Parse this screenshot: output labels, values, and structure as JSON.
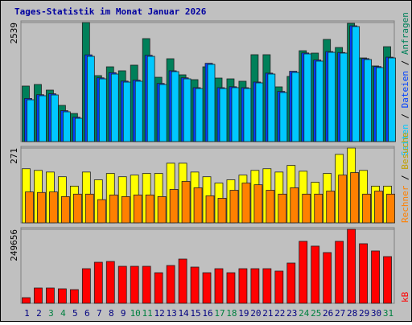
{
  "title": "Tages-Statistik im Monat Januar 2026",
  "legend_separator": "/",
  "chart_data": [
    {
      "type": "bar",
      "ylim": [
        0,
        2539
      ],
      "yticks": [
        2539
      ],
      "series": [
        {
          "name": "Anfragen",
          "color": "#00805a",
          "values": [
            1184,
            1218,
            1098,
            772,
            600,
            2539,
            1407,
            1595,
            1510,
            1630,
            2196,
            1372,
            1767,
            1424,
            1321,
            1595,
            1355,
            1338,
            1287,
            1853,
            1853,
            1167,
            1390,
            1938,
            1887,
            2179,
            2007,
            2522,
            1784,
            1613,
            2024
          ]
        },
        {
          "name": "Dateien",
          "color": "#0040ff",
          "values": [
            920,
            1000,
            1020,
            660,
            520,
            1850,
            1360,
            1470,
            1290,
            1310,
            1840,
            1240,
            1510,
            1360,
            1150,
            1670,
            1150,
            1170,
            1150,
            1270,
            1460,
            1070,
            1500,
            1890,
            1740,
            1920,
            1900,
            2470,
            1770,
            1600,
            1800
          ]
        },
        {
          "name": "Seiten",
          "color": "#00c8ff",
          "values": [
            892,
            978,
            995,
            635,
            497,
            1818,
            1338,
            1441,
            1269,
            1287,
            1818,
            1218,
            1492,
            1338,
            1132,
            1647,
            1132,
            1150,
            1132,
            1252,
            1441,
            1047,
            1475,
            1870,
            1716,
            1904,
            1887,
            2453,
            1750,
            1578,
            1784
          ]
        }
      ]
    },
    {
      "type": "bar",
      "ylim": [
        0,
        271
      ],
      "yticks": [
        271
      ],
      "series": [
        {
          "name": "Besuche",
          "color": "#ffff00",
          "values": [
            196,
            190,
            184,
            167,
            133,
            184,
            156,
            179,
            167,
            173,
            179,
            179,
            216,
            216,
            184,
            167,
            144,
            156,
            173,
            190,
            196,
            184,
            208,
            187,
            147,
            179,
            248,
            271,
            190,
            133,
            133
          ]
        },
        {
          "name": "Rechner",
          "color": "#ff8000",
          "values": [
            112,
            110,
            112,
            95,
            104,
            104,
            84,
            101,
            95,
            101,
            101,
            95,
            121,
            150,
            127,
            98,
            89,
            118,
            144,
            138,
            118,
            104,
            127,
            104,
            104,
            115,
            173,
            182,
            104,
            115,
            104
          ]
        }
      ]
    },
    {
      "type": "bar",
      "ylim": [
        0,
        249656
      ],
      "yticks": [
        249656
      ],
      "categories": [
        "1",
        "2",
        "3",
        "4",
        "5",
        "6",
        "7",
        "8",
        "9",
        "10",
        "11",
        "12",
        "13",
        "14",
        "15",
        "16",
        "17",
        "18",
        "19",
        "20",
        "21",
        "22",
        "23",
        "24",
        "25",
        "26",
        "27",
        "28",
        "29",
        "30",
        "31"
      ],
      "category_colors": [
        "#000080",
        "#000080",
        "#008040",
        "#008040",
        "#000080",
        "#000080",
        "#000080",
        "#000080",
        "#000080",
        "#008040",
        "#008040",
        "#000080",
        "#000080",
        "#000080",
        "#000080",
        "#000080",
        "#008040",
        "#008040",
        "#000080",
        "#000080",
        "#000080",
        "#000080",
        "#000080",
        "#008040",
        "#008040",
        "#000080",
        "#000080",
        "#000080",
        "#000080",
        "#000080",
        "#008040"
      ],
      "series": [
        {
          "name": "kB",
          "color": "#ff0000",
          "values": [
            19000,
            51560,
            51560,
            48850,
            46130,
            116700,
            138400,
            141100,
            124800,
            124800,
            124800,
            103100,
            127500,
            149200,
            122100,
            103100,
            116700,
            103100,
            116700,
            116700,
            116700,
            108600,
            135700,
            209000,
            192800,
            171100,
            209000,
            249656,
            200900,
            176500,
            157500
          ]
        }
      ]
    }
  ]
}
